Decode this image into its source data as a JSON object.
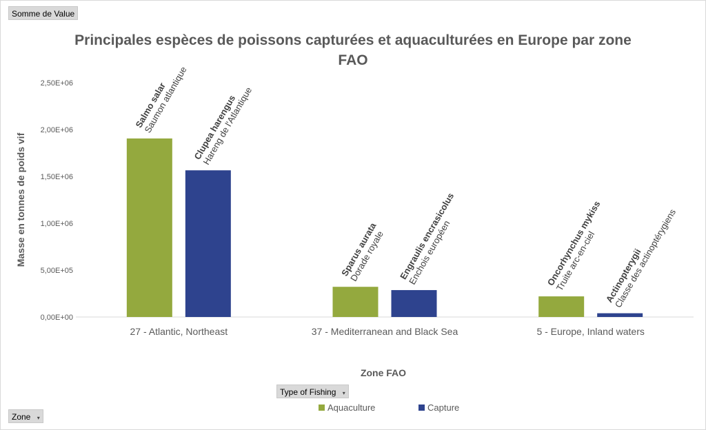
{
  "field_buttons": {
    "value_field": "Somme de Value",
    "legend_field": "Type of Fishing",
    "axis_field": "Zone",
    "dropdown_glyph": "▾"
  },
  "chart_data": {
    "type": "bar",
    "title_lines": [
      "Principales espèces de poissons capturées et aquaculturées en Europe par zone",
      "FAO"
    ],
    "xlabel": "Zone FAO",
    "ylabel": "Masse en tonnes de poids vif",
    "ylim": [
      0,
      2500000
    ],
    "yticks": [
      0,
      500000,
      1000000,
      1500000,
      2000000,
      2500000
    ],
    "ytick_labels": [
      "0,00E+00",
      "5,00E+05",
      "1,00E+06",
      "1,50E+06",
      "2,00E+06",
      "2,50E+06"
    ],
    "categories": [
      "27 - Atlantic, Northeast",
      "37 - Mediterranean and Black Sea",
      "5 - Europe, Inland waters"
    ],
    "series": [
      {
        "name": "Aquaculture",
        "color": "#94A93E",
        "values": [
          1905000,
          322000,
          220000
        ],
        "labels": [
          {
            "scientific": "Salmo salar",
            "common": "Saumon atlantique"
          },
          {
            "scientific": "Sparus aurata",
            "common": "Dorade royale"
          },
          {
            "scientific": "Oncorhynchus mykiss",
            "common": "Truite arc-en-ciel"
          }
        ]
      },
      {
        "name": "Capture",
        "color": "#2E438E",
        "values": [
          1565000,
          287000,
          40000
        ],
        "labels": [
          {
            "scientific": "Clupea harengus",
            "common": "Hareng de l'Atlantique"
          },
          {
            "scientific": "Engraulis encrasicolus",
            "common": "Enchois européen"
          },
          {
            "scientific": "Actinopterygii",
            "common": "Classe des actinoptérygiens"
          }
        ]
      }
    ],
    "gridlines": false,
    "legend_position": "bottom"
  }
}
